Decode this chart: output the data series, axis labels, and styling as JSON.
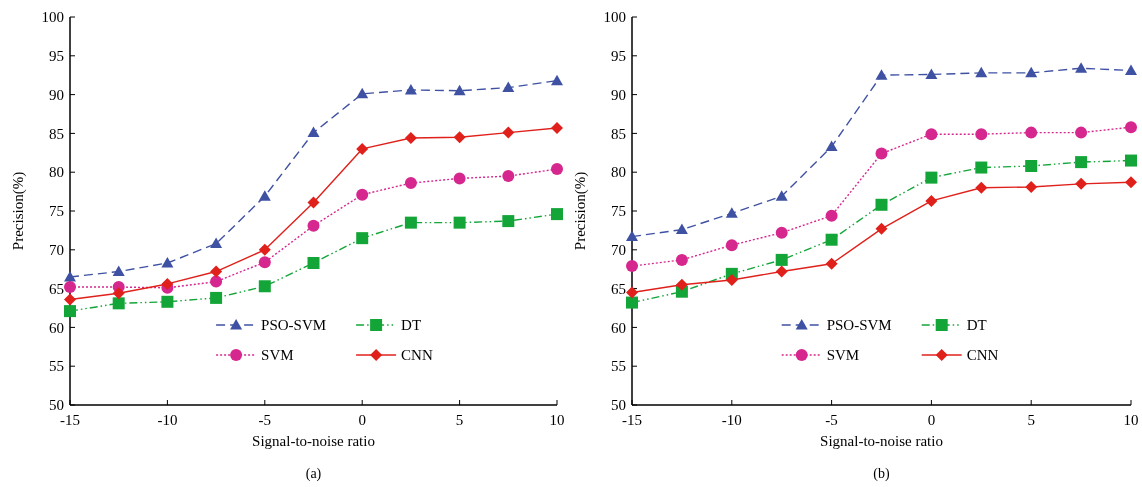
{
  "chart_data": [
    {
      "type": "line",
      "xlabel": "Signal-to-noise ratio",
      "ylabel": "Precision(%)",
      "annotations": [
        "(a)"
      ],
      "x": [
        -15,
        -12.5,
        -10,
        -7.5,
        -5,
        -2.5,
        0,
        2.5,
        5,
        7.5,
        10
      ],
      "xlim": [
        -15,
        10
      ],
      "xticks": [
        -15,
        -10,
        -5,
        0,
        5,
        10
      ],
      "ylim": [
        50,
        100
      ],
      "yticks": [
        50,
        55,
        60,
        65,
        70,
        75,
        80,
        85,
        90,
        95,
        100
      ],
      "legend": "bottom",
      "series": [
        {
          "name": "PSO-SVM",
          "color": "#3f51a3",
          "marker": "triangle",
          "line_style": "dashed",
          "values": [
            66.5,
            67.2,
            68.3,
            70.8,
            76.9,
            85.1,
            90.1,
            90.6,
            90.5,
            90.9,
            91.8
          ]
        },
        {
          "name": "DT",
          "color": "#13a538",
          "marker": "square",
          "line_style": "dashdot",
          "values": [
            62.1,
            63.1,
            63.3,
            63.8,
            65.3,
            68.3,
            71.5,
            73.5,
            73.5,
            73.7,
            74.6
          ]
        },
        {
          "name": "SVM",
          "color": "#d6278f",
          "marker": "circle",
          "line_style": "dotted",
          "values": [
            65.2,
            65.2,
            65.1,
            65.9,
            68.4,
            73.1,
            77.1,
            78.6,
            79.2,
            79.5,
            80.4
          ]
        },
        {
          "name": "CNN",
          "color": "#e0201b",
          "marker": "diamond",
          "line_style": "solid",
          "values": [
            63.6,
            64.4,
            65.6,
            67.2,
            70.0,
            76.1,
            83.0,
            84.4,
            84.5,
            85.1,
            85.7
          ]
        }
      ]
    },
    {
      "type": "line",
      "xlabel": "Signal-to-noise ratio",
      "ylabel": "Precision(%)",
      "annotations": [
        "(b)"
      ],
      "x": [
        -15,
        -12.5,
        -10,
        -7.5,
        -5,
        -2.5,
        0,
        2.5,
        5,
        7.5,
        10
      ],
      "xlim": [
        -15,
        10
      ],
      "xticks": [
        -15,
        -10,
        -5,
        0,
        5,
        10
      ],
      "ylim": [
        50,
        100
      ],
      "yticks": [
        50,
        55,
        60,
        65,
        70,
        75,
        80,
        85,
        90,
        95,
        100
      ],
      "legend": "bottom",
      "series": [
        {
          "name": "PSO-SVM",
          "color": "#3f51a3",
          "marker": "triangle",
          "line_style": "dashed",
          "values": [
            71.7,
            72.6,
            74.7,
            76.9,
            83.3,
            92.5,
            92.6,
            92.8,
            92.8,
            93.4,
            93.1
          ]
        },
        {
          "name": "DT",
          "color": "#13a538",
          "marker": "square",
          "line_style": "dashdot",
          "values": [
            63.2,
            64.6,
            66.9,
            68.7,
            71.3,
            75.8,
            79.3,
            80.6,
            80.8,
            81.3,
            81.5
          ]
        },
        {
          "name": "SVM",
          "color": "#d6278f",
          "marker": "circle",
          "line_style": "dotted",
          "values": [
            67.9,
            68.7,
            70.6,
            72.2,
            74.4,
            82.4,
            84.9,
            84.9,
            85.1,
            85.1,
            85.8
          ]
        },
        {
          "name": "CNN",
          "color": "#e0201b",
          "marker": "diamond",
          "line_style": "solid",
          "values": [
            64.5,
            65.5,
            66.1,
            67.2,
            68.2,
            72.7,
            76.3,
            78.0,
            78.1,
            78.5,
            78.7
          ]
        }
      ]
    }
  ]
}
